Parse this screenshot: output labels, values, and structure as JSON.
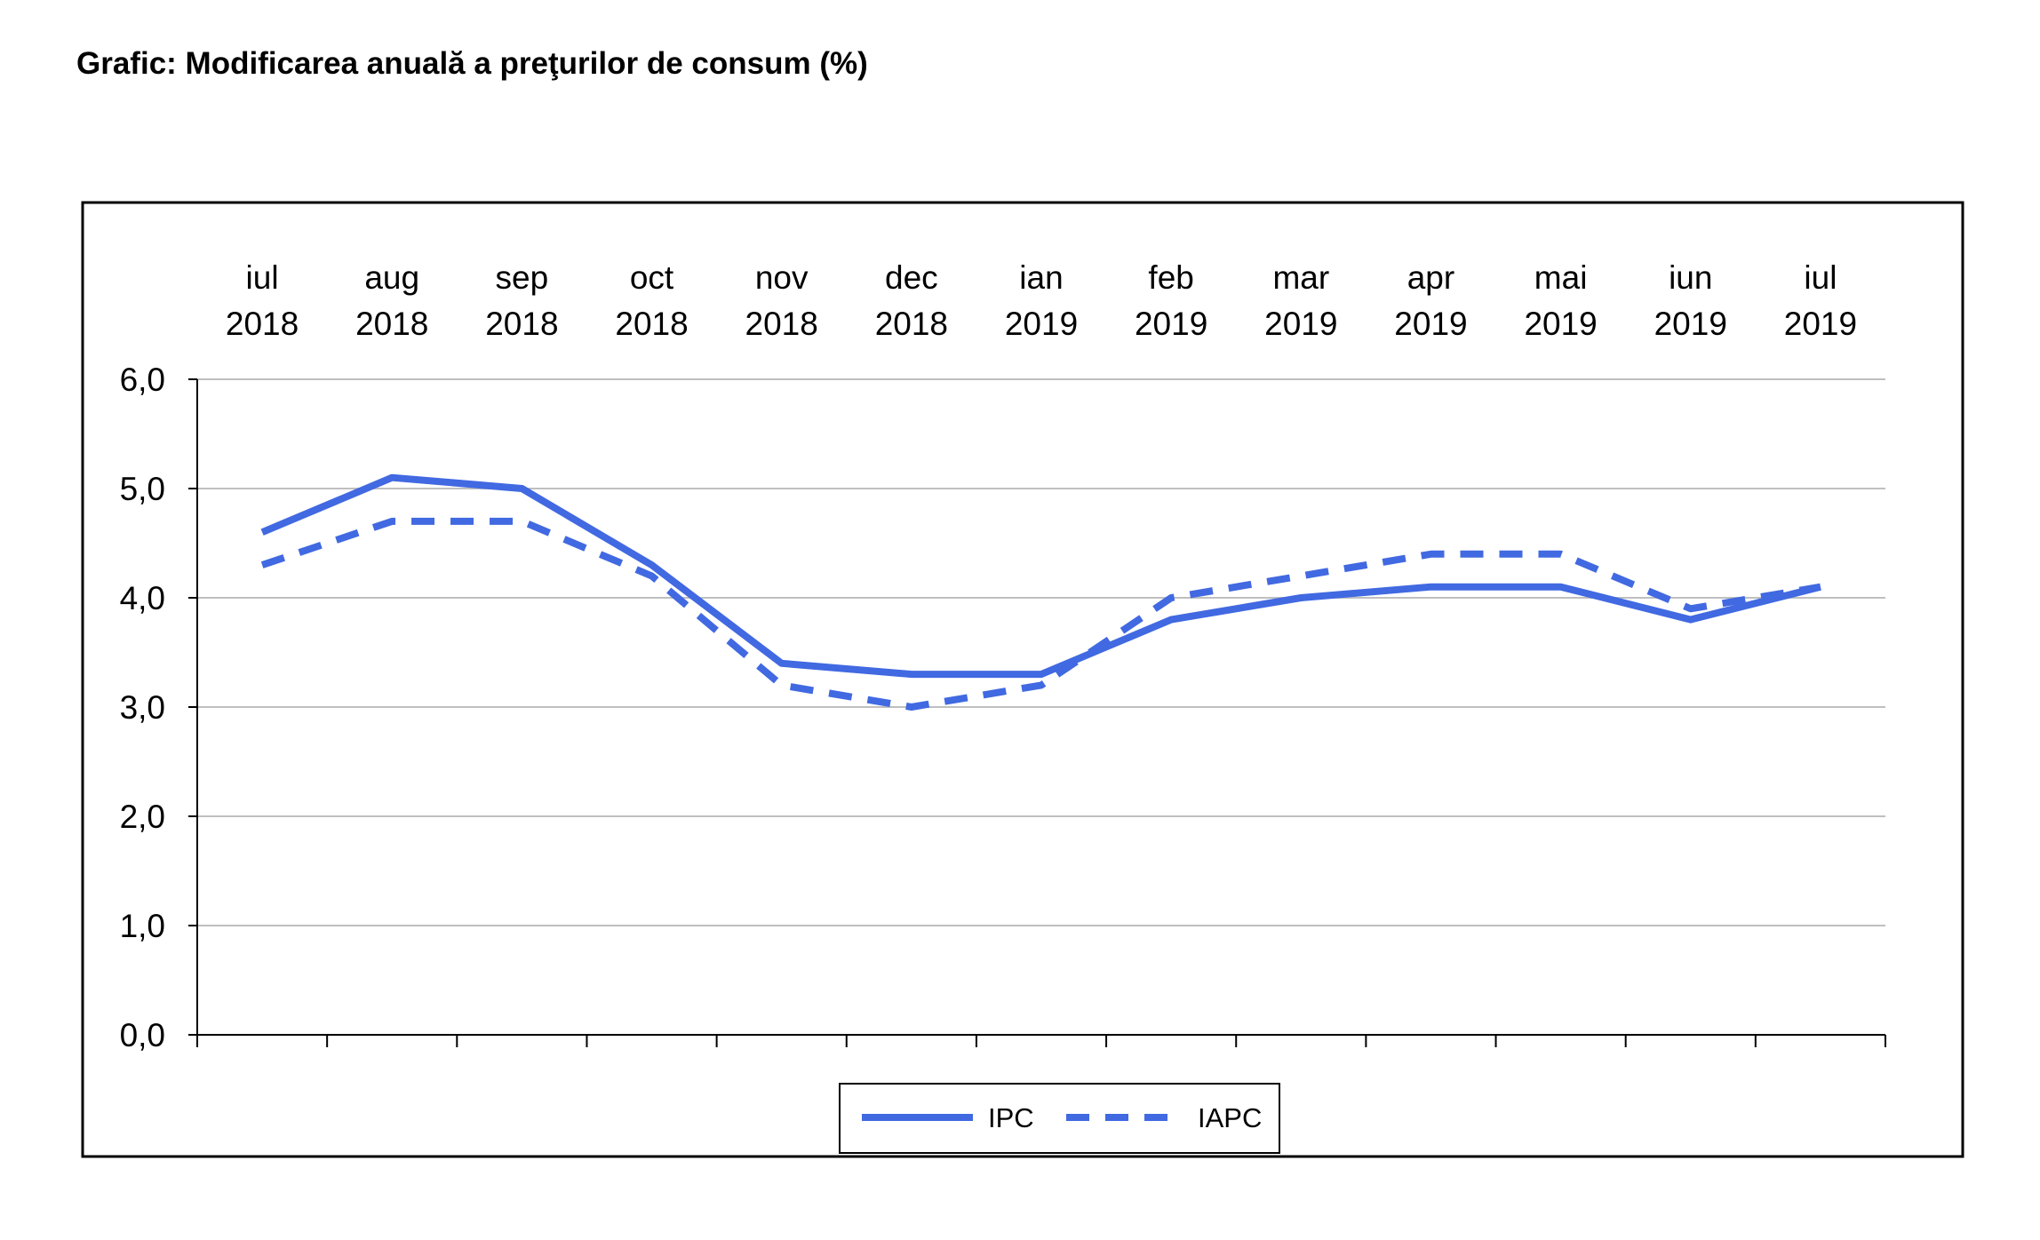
{
  "title": "Grafic: Modificarea anuală a preţurilor de consum (%)",
  "chart_data": {
    "type": "line",
    "categories": [
      [
        "iul",
        "2018"
      ],
      [
        "aug",
        "2018"
      ],
      [
        "sep",
        "2018"
      ],
      [
        "oct",
        "2018"
      ],
      [
        "nov",
        "2018"
      ],
      [
        "dec",
        "2018"
      ],
      [
        "ian",
        "2019"
      ],
      [
        "feb",
        "2019"
      ],
      [
        "mar",
        "2019"
      ],
      [
        "apr",
        "2019"
      ],
      [
        "mai",
        "2019"
      ],
      [
        "iun",
        "2019"
      ],
      [
        "iul",
        "2019"
      ]
    ],
    "x_axis_position": "top",
    "ylim": [
      0,
      6
    ],
    "yticks": [
      "0,0",
      "1,0",
      "2,0",
      "3,0",
      "4,0",
      "5,0",
      "6,0"
    ],
    "grid": true,
    "legend_position": "bottom-center",
    "series": [
      {
        "name": "IPC",
        "style": "solid",
        "color": "#4169E1",
        "values": [
          4.6,
          5.1,
          5.0,
          4.3,
          3.4,
          3.3,
          3.3,
          3.8,
          4.0,
          4.1,
          4.1,
          3.8,
          4.1
        ]
      },
      {
        "name": "IAPC",
        "style": "dashed",
        "color": "#4169E1",
        "values": [
          4.3,
          4.7,
          4.7,
          4.2,
          3.2,
          3.0,
          3.2,
          4.0,
          4.2,
          4.4,
          4.4,
          3.9,
          4.1
        ]
      }
    ]
  }
}
